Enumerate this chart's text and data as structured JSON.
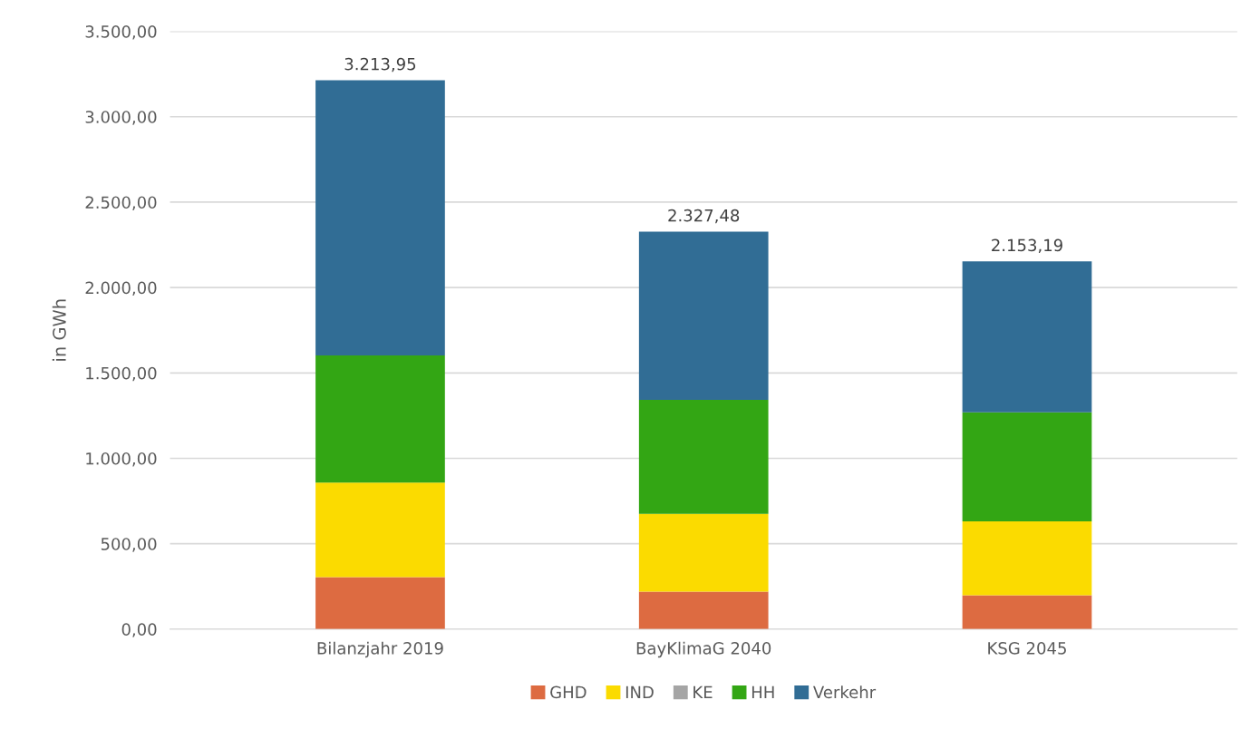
{
  "chart_data": {
    "type": "bar",
    "stacked": true,
    "ylabel": "in GWh",
    "categories": [
      "Bilanzjahr 2019",
      "BayKlimaG 2040",
      "KSG 2045"
    ],
    "series": [
      {
        "name": "GHD",
        "color": "#dd6b41",
        "values": [
          304,
          219,
          198
        ]
      },
      {
        "name": "IND",
        "color": "#fbdb00",
        "values": [
          554,
          456,
          433
        ]
      },
      {
        "name": "KE",
        "color": "#a5a5a5",
        "values": [
          0,
          0,
          0
        ]
      },
      {
        "name": "HH",
        "color": "#33a614",
        "values": [
          744,
          667,
          639
        ]
      },
      {
        "name": "Verkehr",
        "color": "#316d95",
        "values": [
          1611.95,
          985.48,
          883.19
        ]
      }
    ],
    "totals": [
      "3.213,95",
      "2.327,48",
      "2.153,19"
    ],
    "ylim": [
      0,
      3500
    ],
    "yticks": [
      {
        "value": 0,
        "label": "0,00"
      },
      {
        "value": 500,
        "label": "500,00"
      },
      {
        "value": 1000,
        "label": "1.000,00"
      },
      {
        "value": 1500,
        "label": "1.500,00"
      },
      {
        "value": 2000,
        "label": "2.000,00"
      },
      {
        "value": 2500,
        "label": "2.500,00"
      },
      {
        "value": 3000,
        "label": "3.000,00"
      },
      {
        "value": 3500,
        "label": "3.500,00"
      }
    ],
    "grid": "y",
    "legend": "bottom"
  }
}
